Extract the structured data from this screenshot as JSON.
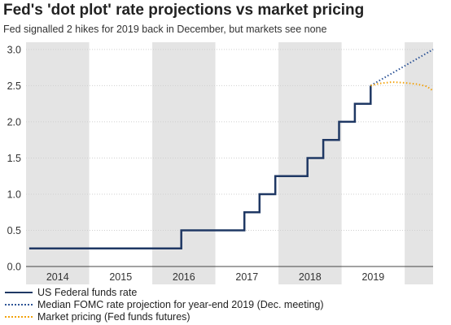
{
  "chart_data": {
    "type": "line",
    "title": "Fed's 'dot plot' rate projections vs market pricing",
    "subtitle": "Fed signalled 2 hikes for 2019 back in December, but markets see none",
    "xlabel": "",
    "ylabel": "",
    "x_tick_labels": [
      "2014",
      "2015",
      "2016",
      "2017",
      "2018",
      "2019"
    ],
    "y_tick_labels": [
      "0.0",
      "0.5",
      "1.0",
      "1.5",
      "2.0",
      "2.5",
      "3.0"
    ],
    "ylim": [
      0,
      3.1
    ],
    "xlim": [
      2013.5,
      2019.95
    ],
    "shaded_years": [
      2014,
      2016,
      2018
    ],
    "grid": true,
    "legend_position": "bottom-left",
    "series": [
      {
        "name": "US Federal funds rate",
        "style": "solid",
        "color": "#1f3864",
        "x": [
          2013.55,
          2015.96,
          2015.96,
          2016.96,
          2016.96,
          2017.2,
          2017.2,
          2017.45,
          2017.45,
          2017.96,
          2017.96,
          2018.21,
          2018.21,
          2018.46,
          2018.46,
          2018.71,
          2018.71,
          2018.96,
          2018.96
        ],
        "values": [
          0.25,
          0.25,
          0.5,
          0.5,
          0.75,
          0.75,
          1.0,
          1.0,
          1.25,
          1.25,
          1.5,
          1.5,
          1.75,
          1.75,
          2.0,
          2.0,
          2.25,
          2.25,
          2.5
        ]
      },
      {
        "name": "Median FOMC rate projection for year-end 2019 (Dec. meeting)",
        "style": "dotted",
        "color": "#2e5597",
        "x": [
          2018.96,
          2019.95
        ],
        "values": [
          2.5,
          3.0
        ]
      },
      {
        "name": "Market pricing (Fed funds futures)",
        "style": "dotted",
        "color": "#f2a20c",
        "x": [
          2018.96,
          2019.1,
          2019.3,
          2019.5,
          2019.7,
          2019.85,
          2019.95
        ],
        "values": [
          2.5,
          2.53,
          2.55,
          2.54,
          2.52,
          2.49,
          2.43
        ]
      }
    ]
  }
}
